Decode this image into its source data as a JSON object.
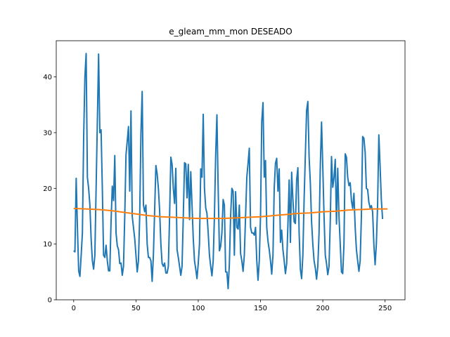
{
  "chart_data": {
    "type": "line",
    "title": "e_gleam_mm_mon DESEADO",
    "xlabel": "",
    "ylabel": "",
    "xlim": [
      -14,
      266
    ],
    "ylim": [
      0,
      46.5
    ],
    "x_ticks": [
      0,
      50,
      100,
      150,
      200,
      250
    ],
    "y_ticks": [
      0,
      10,
      20,
      30,
      40
    ],
    "grid": false,
    "legend": "none",
    "series": [
      {
        "color": "#1f77b4",
        "points": [
          [
            0,
            8.8
          ],
          [
            1,
            8.6
          ],
          [
            2,
            21.8
          ],
          [
            3,
            13
          ],
          [
            4,
            5.2
          ],
          [
            5,
            4.2
          ],
          [
            6,
            8
          ],
          [
            7,
            12
          ],
          [
            8,
            29
          ],
          [
            9,
            40
          ],
          [
            10,
            44.2
          ],
          [
            11,
            22
          ],
          [
            12,
            20
          ],
          [
            13,
            17
          ],
          [
            14,
            11
          ],
          [
            15,
            7
          ],
          [
            16,
            5.5
          ],
          [
            17,
            8
          ],
          [
            18,
            20
          ],
          [
            19,
            32
          ],
          [
            20,
            44.1
          ],
          [
            21,
            30
          ],
          [
            22,
            30.5
          ],
          [
            23,
            20
          ],
          [
            24,
            8
          ],
          [
            25,
            7.6
          ],
          [
            26,
            9.8
          ],
          [
            27,
            7
          ],
          [
            28,
            5.2
          ],
          [
            29,
            5.2
          ],
          [
            30,
            14
          ],
          [
            31,
            20.4
          ],
          [
            32,
            17.8
          ],
          [
            33,
            25.9
          ],
          [
            34,
            12
          ],
          [
            35,
            9.7
          ],
          [
            36,
            9
          ],
          [
            37,
            6.5
          ],
          [
            38,
            6.6
          ],
          [
            39,
            4.4
          ],
          [
            40,
            6
          ],
          [
            41,
            15
          ],
          [
            42,
            26
          ],
          [
            43,
            28.5
          ],
          [
            44,
            31.1
          ],
          [
            45,
            19.5
          ],
          [
            46,
            33.9
          ],
          [
            47,
            15
          ],
          [
            48,
            13
          ],
          [
            49,
            11
          ],
          [
            50,
            8
          ],
          [
            51,
            5
          ],
          [
            52,
            7
          ],
          [
            53,
            15
          ],
          [
            54,
            30
          ],
          [
            55,
            37.4
          ],
          [
            56,
            17
          ],
          [
            57,
            15.8
          ],
          [
            58,
            17
          ],
          [
            59,
            10
          ],
          [
            60,
            7.6
          ],
          [
            61,
            7.6
          ],
          [
            62,
            7
          ],
          [
            63,
            3.3
          ],
          [
            64,
            8
          ],
          [
            65,
            16
          ],
          [
            66,
            24.1
          ],
          [
            67,
            22.6
          ],
          [
            68,
            20
          ],
          [
            69,
            16
          ],
          [
            70,
            10
          ],
          [
            71,
            6.5
          ],
          [
            72,
            6
          ],
          [
            73,
            6.6
          ],
          [
            74,
            4.8
          ],
          [
            75,
            4.8
          ],
          [
            76,
            6
          ],
          [
            77,
            15
          ],
          [
            78,
            25.6
          ],
          [
            79,
            24.3
          ],
          [
            80,
            20
          ],
          [
            81,
            17.3
          ],
          [
            82,
            23.6
          ],
          [
            83,
            9
          ],
          [
            84,
            7.6
          ],
          [
            85,
            6
          ],
          [
            86,
            4.4
          ],
          [
            87,
            6
          ],
          [
            88,
            15
          ],
          [
            89,
            24.6
          ],
          [
            90,
            24.4
          ],
          [
            91,
            18.3
          ],
          [
            92,
            24.3
          ],
          [
            93,
            14.4
          ],
          [
            94,
            23
          ],
          [
            95,
            17
          ],
          [
            96,
            11
          ],
          [
            97,
            7
          ],
          [
            98,
            5.5
          ],
          [
            99,
            3.8
          ],
          [
            100,
            6.5
          ],
          [
            101,
            10
          ],
          [
            102,
            23.5
          ],
          [
            103,
            22
          ],
          [
            104,
            33.3
          ],
          [
            105,
            20
          ],
          [
            106,
            16.5
          ],
          [
            107,
            15.5
          ],
          [
            108,
            12
          ],
          [
            109,
            8
          ],
          [
            110,
            6
          ],
          [
            111,
            4.3
          ],
          [
            112,
            7
          ],
          [
            113,
            15
          ],
          [
            114,
            26
          ],
          [
            115,
            33.2
          ],
          [
            116,
            20
          ],
          [
            117,
            8.8
          ],
          [
            118,
            9.6
          ],
          [
            119,
            12
          ],
          [
            120,
            18
          ],
          [
            121,
            17
          ],
          [
            122,
            5
          ],
          [
            123,
            5
          ],
          [
            124,
            2
          ],
          [
            125,
            6.5
          ],
          [
            126,
            15
          ],
          [
            127,
            20
          ],
          [
            128,
            19.5
          ],
          [
            129,
            8
          ],
          [
            130,
            19.4
          ],
          [
            131,
            13
          ],
          [
            132,
            12.7
          ],
          [
            133,
            17
          ],
          [
            134,
            8.3
          ],
          [
            135,
            7
          ],
          [
            136,
            5.1
          ],
          [
            137,
            8
          ],
          [
            138,
            15
          ],
          [
            139,
            22
          ],
          [
            140,
            24.5
          ],
          [
            141,
            27.2
          ],
          [
            142,
            13
          ],
          [
            143,
            12
          ],
          [
            144,
            12
          ],
          [
            145,
            11.6
          ],
          [
            146,
            13
          ],
          [
            147,
            7
          ],
          [
            148,
            3.5
          ],
          [
            149,
            7
          ],
          [
            150,
            15
          ],
          [
            151,
            32
          ],
          [
            152,
            35.4
          ],
          [
            153,
            22
          ],
          [
            154,
            25
          ],
          [
            155,
            13
          ],
          [
            156,
            10.5
          ],
          [
            157,
            9
          ],
          [
            158,
            7
          ],
          [
            159,
            4.6
          ],
          [
            160,
            8
          ],
          [
            161,
            20
          ],
          [
            162,
            24.5
          ],
          [
            163,
            25.4
          ],
          [
            164,
            19.5
          ],
          [
            165,
            23.5
          ],
          [
            166,
            10.3
          ],
          [
            167,
            12.5
          ],
          [
            168,
            9
          ],
          [
            169,
            7
          ],
          [
            170,
            4.7
          ],
          [
            171,
            6.5
          ],
          [
            172,
            13.5
          ],
          [
            173,
            21.5
          ],
          [
            174,
            10.3
          ],
          [
            175,
            22.9
          ],
          [
            176,
            18
          ],
          [
            177,
            14
          ],
          [
            178,
            13.7
          ],
          [
            179,
            21.5
          ],
          [
            180,
            23.7
          ],
          [
            181,
            12
          ],
          [
            182,
            5.5
          ],
          [
            183,
            3.8
          ],
          [
            184,
            8
          ],
          [
            185,
            18
          ],
          [
            186,
            26
          ],
          [
            187,
            34
          ],
          [
            188,
            35.6
          ],
          [
            189,
            25.7
          ],
          [
            190,
            21
          ],
          [
            191,
            14
          ],
          [
            192,
            10
          ],
          [
            193,
            7
          ],
          [
            194,
            5.7
          ],
          [
            195,
            3.7
          ],
          [
            196,
            6
          ],
          [
            197,
            12
          ],
          [
            198,
            24
          ],
          [
            199,
            31.9
          ],
          [
            200,
            23.8
          ],
          [
            201,
            15
          ],
          [
            202,
            8
          ],
          [
            203,
            6.5
          ],
          [
            204,
            4.5
          ],
          [
            205,
            6
          ],
          [
            206,
            14
          ],
          [
            207,
            25.7
          ],
          [
            208,
            20.2
          ],
          [
            209,
            21.9
          ],
          [
            210,
            25.2
          ],
          [
            211,
            13.6
          ],
          [
            212,
            23.6
          ],
          [
            213,
            15
          ],
          [
            214,
            10
          ],
          [
            215,
            5
          ],
          [
            216,
            4.7
          ],
          [
            217,
            10
          ],
          [
            218,
            26.2
          ],
          [
            219,
            25.6
          ],
          [
            220,
            22
          ],
          [
            221,
            20.5
          ],
          [
            222,
            21
          ],
          [
            223,
            17.8
          ],
          [
            224,
            16.4
          ],
          [
            225,
            19.1
          ],
          [
            226,
            13
          ],
          [
            227,
            9
          ],
          [
            228,
            7
          ],
          [
            229,
            5.1
          ],
          [
            230,
            7
          ],
          [
            231,
            15
          ],
          [
            232,
            29.3
          ],
          [
            233,
            29
          ],
          [
            234,
            26.5
          ],
          [
            235,
            20
          ],
          [
            236,
            19.8
          ],
          [
            237,
            17.5
          ],
          [
            238,
            16.5
          ],
          [
            239,
            16.9
          ],
          [
            240,
            15.8
          ],
          [
            241,
            10
          ],
          [
            242,
            6.3
          ],
          [
            243,
            10
          ],
          [
            244,
            17
          ],
          [
            245,
            29.6
          ],
          [
            246,
            24
          ],
          [
            247,
            18
          ],
          [
            248,
            14.5
          ]
        ]
      },
      {
        "color": "#ff7f0e",
        "points": [
          [
            0,
            16.4
          ],
          [
            10,
            16.3
          ],
          [
            20,
            16.2
          ],
          [
            30,
            16
          ],
          [
            40,
            15.7
          ],
          [
            50,
            15.4
          ],
          [
            60,
            15.1
          ],
          [
            70,
            14.9
          ],
          [
            80,
            14.8
          ],
          [
            90,
            14.7
          ],
          [
            100,
            14.6
          ],
          [
            110,
            14.6
          ],
          [
            120,
            14.6
          ],
          [
            130,
            14.7
          ],
          [
            140,
            14.8
          ],
          [
            150,
            14.9
          ],
          [
            160,
            15.1
          ],
          [
            170,
            15.3
          ],
          [
            180,
            15.5
          ],
          [
            190,
            15.6
          ],
          [
            200,
            15.8
          ],
          [
            210,
            15.9
          ],
          [
            220,
            16.1
          ],
          [
            230,
            16.2
          ],
          [
            240,
            16.3
          ],
          [
            252,
            16.3
          ]
        ]
      }
    ]
  }
}
